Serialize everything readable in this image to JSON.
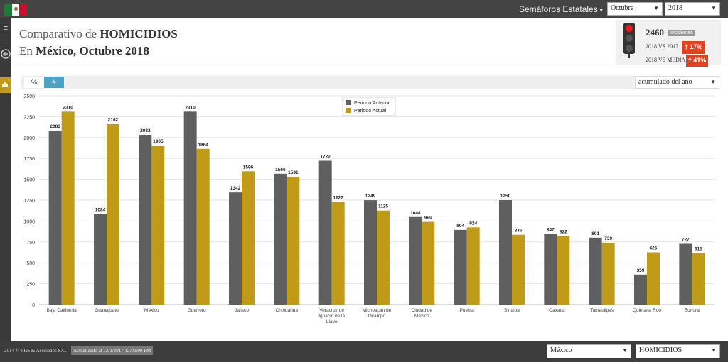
{
  "topbar": {
    "nav_title": "Semáforos Estatales",
    "month": "Octubre",
    "year": "2018"
  },
  "header": {
    "line1_prefix": "Comparativo de ",
    "line1_bold": "HOMICIDIOS",
    "line2_prefix": "En ",
    "line2_bold": "México, Octubre 2018"
  },
  "stats": {
    "count": "2460",
    "count_label": "Incidentes",
    "vs_prev_label": "2018 VS 2017",
    "vs_prev_value": "17%",
    "vs_media_label": "2018 VS MEDIA",
    "vs_media_value": "41%"
  },
  "controls": {
    "percent": "%",
    "number": "#",
    "accum": "acumulado del año"
  },
  "footer": {
    "copyright": "2014 © RRS & Asociados S.C.",
    "updated": "Actualizado al 12/1/2017 12:00:00 PM",
    "state": "México",
    "crime": "HOMICIDIOS"
  },
  "colors": {
    "prev": "#5f5f5f",
    "curr": "#bf9b17"
  },
  "chart_data": {
    "type": "bar",
    "categories": [
      [
        "Baja California"
      ],
      [
        "Guanajuato"
      ],
      [
        "México"
      ],
      [
        "Guerrero"
      ],
      [
        "Jalisco"
      ],
      [
        "Chihuahua"
      ],
      [
        "Veracruz de",
        "Ignacio de la",
        "Llave"
      ],
      [
        "Michoacán de",
        "Ocampo"
      ],
      [
        "Ciudad de",
        "México"
      ],
      [
        "Puebla"
      ],
      [
        "Sinaloa"
      ],
      [
        "Oaxaca"
      ],
      [
        "Tamaulipas"
      ],
      [
        "Quintana Roo"
      ],
      [
        "Sonora"
      ]
    ],
    "series": [
      {
        "name": "Periodo Anterior",
        "values": [
          2083,
          1084,
          2032,
          2310,
          1342,
          1566,
          1722,
          1249,
          1048,
          894,
          1250,
          847,
          801,
          359,
          727
        ]
      },
      {
        "name": "Periodo Actual",
        "values": [
          2310,
          2162,
          1905,
          1864,
          1596,
          1531,
          1227,
          1125,
          990,
          924,
          836,
          822,
          739,
          625,
          615
        ]
      }
    ],
    "yticks": [
      0,
      250,
      500,
      750,
      1000,
      1250,
      1500,
      1750,
      2000,
      2250,
      2500
    ],
    "ylim": [
      0,
      2500
    ],
    "legend_position": "top-center"
  }
}
